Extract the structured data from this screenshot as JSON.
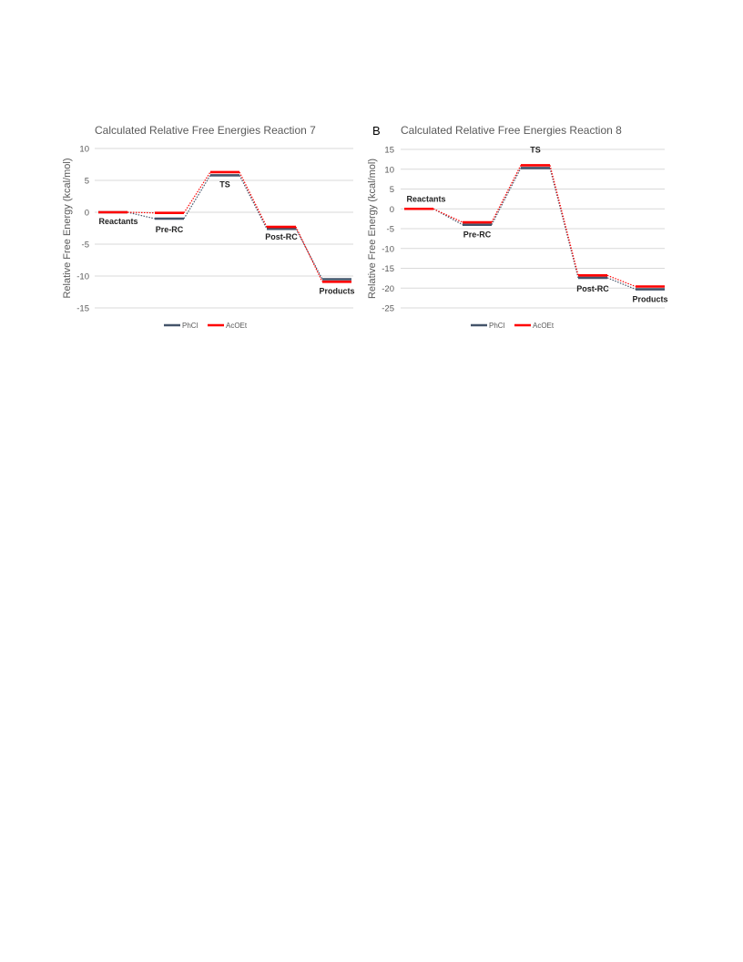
{
  "chart_data": [
    {
      "type": "line",
      "panel_label": "",
      "title": "Calculated Relative Free Energies Reaction 7",
      "xlabel": "",
      "ylabel": "Relative Free Energy (kcal/mol)",
      "ylim": [
        -15,
        10
      ],
      "yticks": [
        10,
        5,
        0,
        -5,
        -10,
        -15
      ],
      "grid": true,
      "legend_position": "bottom",
      "categories": [
        "Reactants",
        "Pre-RC",
        "TS",
        "Post-RC",
        "Products"
      ],
      "series": [
        {
          "name": "PhCl",
          "color": "#44546a",
          "values": [
            0,
            -1.0,
            5.8,
            -2.6,
            -10.5
          ]
        },
        {
          "name": "AcOEt",
          "color": "#ff0000",
          "values": [
            0,
            -0.1,
            6.3,
            -2.3,
            -10.9
          ]
        }
      ]
    },
    {
      "type": "line",
      "panel_label": "B",
      "title": "Calculated Relative Free Energies Reaction 8",
      "xlabel": "",
      "ylabel": "Relative Free Energy (kcal/mol)",
      "ylim": [
        -25,
        15
      ],
      "yticks": [
        15,
        10,
        5,
        0,
        -5,
        -10,
        -15,
        -20,
        -25
      ],
      "grid": true,
      "legend_position": "bottom",
      "categories": [
        "Reactants",
        "Pre-RC",
        "TS",
        "Post-RC",
        "Products"
      ],
      "series": [
        {
          "name": "PhCl",
          "color": "#44546a",
          "values": [
            0,
            -4.0,
            10.3,
            -17.4,
            -20.3
          ]
        },
        {
          "name": "AcOEt",
          "color": "#ff0000",
          "values": [
            0,
            -3.4,
            11.0,
            -16.8,
            -19.6
          ]
        }
      ]
    }
  ]
}
